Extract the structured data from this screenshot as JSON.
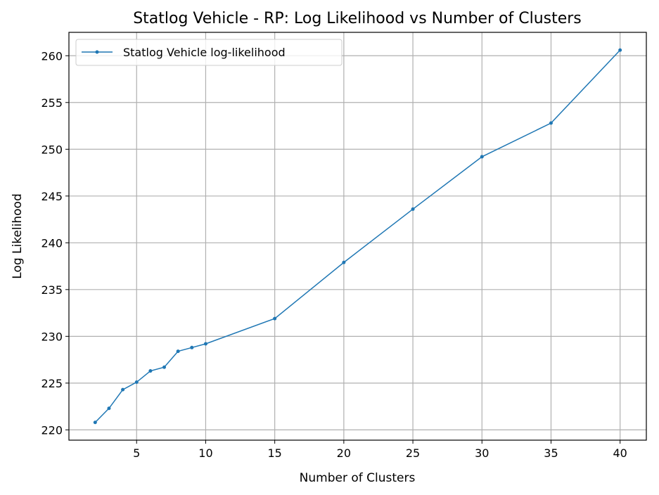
{
  "chart_data": {
    "type": "line",
    "title": "Statlog Vehicle - RP: Log Likelihood vs Number of Clusters",
    "xlabel": "Number of Clusters",
    "ylabel": "Log Likelihood",
    "xlim": [
      0.1,
      41.9
    ],
    "ylim": [
      218.9,
      262.5
    ],
    "xticks": [
      5,
      10,
      15,
      20,
      25,
      30,
      35,
      40
    ],
    "yticks": [
      220,
      225,
      230,
      235,
      240,
      245,
      250,
      255,
      260
    ],
    "grid": true,
    "legend_position": "top-left",
    "series": [
      {
        "name": "Statlog Vehicle log-likelihood",
        "color": "#1f77b4",
        "x": [
          2,
          3,
          4,
          5,
          6,
          7,
          8,
          9,
          10,
          15,
          20,
          25,
          30,
          35,
          40
        ],
        "y": [
          220.8,
          222.3,
          224.3,
          225.1,
          226.3,
          226.7,
          228.4,
          228.8,
          229.2,
          231.9,
          237.9,
          243.6,
          249.2,
          252.8,
          260.6
        ]
      }
    ]
  }
}
